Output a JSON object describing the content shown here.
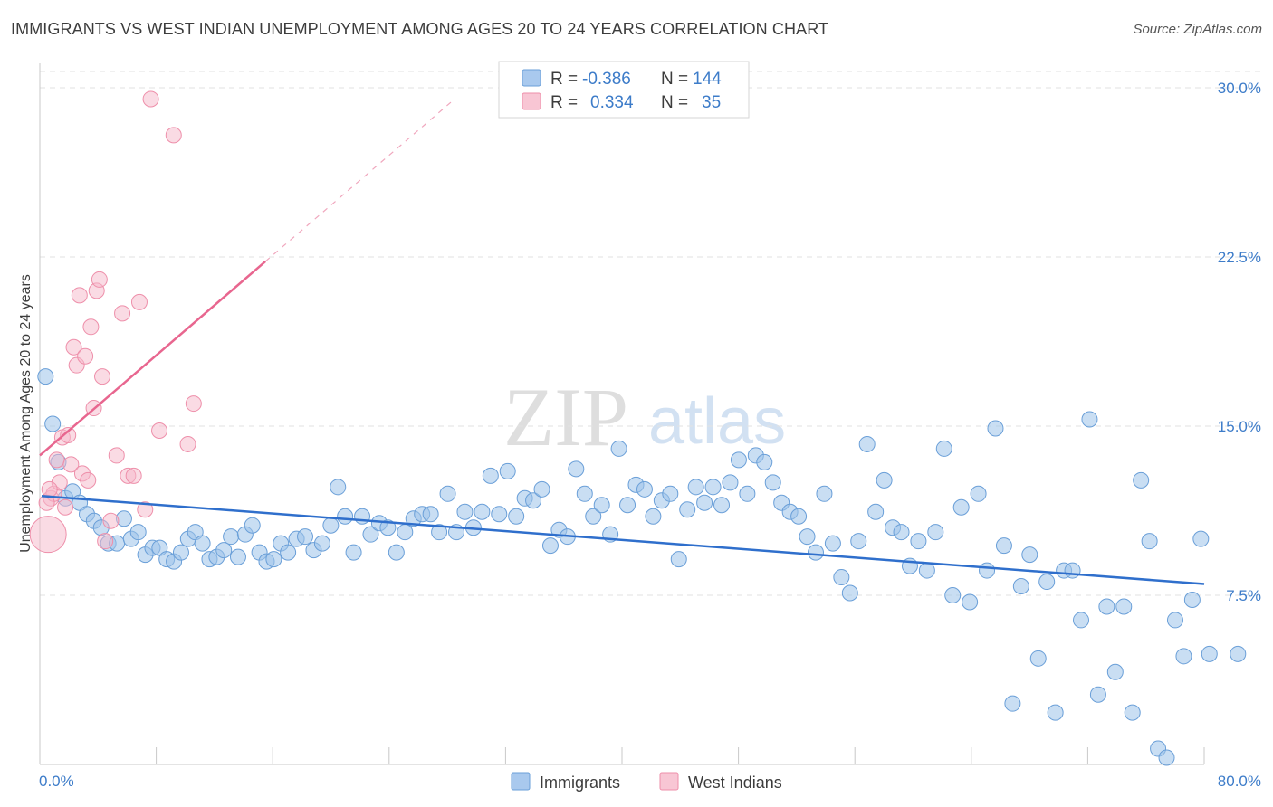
{
  "title": "IMMIGRANTS VS WEST INDIAN UNEMPLOYMENT AMONG AGES 20 TO 24 YEARS CORRELATION CHART",
  "source": "Source: ZipAtlas.com",
  "watermark": {
    "zip": "ZIP",
    "atlas": "atlas"
  },
  "legend": {
    "rows": [
      {
        "r_label": "R =",
        "r_value": "-0.386",
        "n_label": "N =",
        "n_value": "144",
        "color": "#9dc3ea"
      },
      {
        "r_label": "R =",
        "r_value": "0.334",
        "n_label": "N =",
        "n_value": "35",
        "color": "#f5b8c9"
      }
    ]
  },
  "bottom_legend": [
    "Immigrants",
    "West Indians"
  ],
  "chart_data": {
    "type": "scatter",
    "title": "IMMIGRANTS VS WEST INDIAN UNEMPLOYMENT AMONG AGES 20 TO 24 YEARS CORRELATION CHART",
    "xlabel": "",
    "ylabel": "Unemployment Among Ages 20 to 24 years",
    "xlim": [
      0,
      80
    ],
    "ylim": [
      0,
      30
    ],
    "x_tick_labels": [
      "0.0%",
      "80.0%"
    ],
    "y_tick_labels": [
      "7.5%",
      "15.0%",
      "22.5%",
      "30.0%"
    ],
    "y_ticks": [
      7.5,
      15.0,
      22.5,
      30.0
    ],
    "grid": "horizontal dashed",
    "legend_position": "top-center",
    "colors": {
      "immigrants": "#9dc3ea",
      "immigrants_edge": "#6a9fd8",
      "immigrants_line": "#2f6fcc",
      "west_indians": "#f5b8c9",
      "west_indians_edge": "#ee8faa",
      "west_indians_line": "#e8668f"
    },
    "series": [
      {
        "name": "Immigrants",
        "trend": {
          "x": [
            0,
            80
          ],
          "y": [
            11.9,
            8.0
          ]
        },
        "points": [
          [
            0.4,
            17.2
          ],
          [
            0.9,
            15.1
          ],
          [
            1.3,
            13.4
          ],
          [
            1.8,
            11.8
          ],
          [
            2.3,
            12.1
          ],
          [
            2.8,
            11.6
          ],
          [
            3.3,
            11.1
          ],
          [
            3.8,
            10.8
          ],
          [
            4.3,
            10.5
          ],
          [
            4.8,
            9.8
          ],
          [
            5.4,
            9.8
          ],
          [
            5.9,
            10.9
          ],
          [
            6.4,
            10.0
          ],
          [
            6.9,
            10.3
          ],
          [
            7.4,
            9.3
          ],
          [
            7.9,
            9.6
          ],
          [
            8.4,
            9.6
          ],
          [
            8.9,
            9.1
          ],
          [
            9.4,
            9.0
          ],
          [
            9.9,
            9.4
          ],
          [
            10.4,
            10.0
          ],
          [
            10.9,
            10.3
          ],
          [
            11.4,
            9.8
          ],
          [
            11.9,
            9.1
          ],
          [
            12.4,
            9.2
          ],
          [
            12.9,
            9.5
          ],
          [
            13.4,
            10.1
          ],
          [
            13.9,
            9.2
          ],
          [
            14.4,
            10.2
          ],
          [
            14.9,
            10.6
          ],
          [
            15.4,
            9.4
          ],
          [
            15.9,
            9.0
          ],
          [
            16.4,
            9.1
          ],
          [
            16.9,
            9.8
          ],
          [
            17.4,
            9.4
          ],
          [
            18.0,
            10.0
          ],
          [
            18.6,
            10.1
          ],
          [
            19.2,
            9.5
          ],
          [
            19.8,
            9.8
          ],
          [
            20.4,
            10.6
          ],
          [
            20.9,
            12.3
          ],
          [
            21.4,
            11.0
          ],
          [
            22.0,
            9.4
          ],
          [
            22.6,
            11.0
          ],
          [
            23.2,
            10.2
          ],
          [
            23.8,
            10.7
          ],
          [
            24.4,
            10.5
          ],
          [
            25.0,
            9.4
          ],
          [
            25.6,
            10.3
          ],
          [
            26.2,
            10.9
          ],
          [
            26.8,
            11.1
          ],
          [
            27.4,
            11.1
          ],
          [
            28.0,
            10.3
          ],
          [
            28.6,
            12.0
          ],
          [
            29.2,
            10.3
          ],
          [
            29.8,
            11.2
          ],
          [
            30.4,
            10.5
          ],
          [
            31.0,
            11.2
          ],
          [
            31.6,
            12.8
          ],
          [
            32.2,
            11.1
          ],
          [
            32.8,
            13.0
          ],
          [
            33.4,
            11.0
          ],
          [
            34.0,
            11.8
          ],
          [
            34.6,
            11.7
          ],
          [
            35.2,
            12.2
          ],
          [
            35.8,
            9.7
          ],
          [
            36.4,
            10.4
          ],
          [
            37.0,
            10.1
          ],
          [
            37.6,
            13.1
          ],
          [
            38.2,
            12.0
          ],
          [
            38.8,
            11.0
          ],
          [
            39.4,
            11.5
          ],
          [
            40.0,
            10.2
          ],
          [
            40.6,
            14.0
          ],
          [
            41.2,
            11.5
          ],
          [
            41.8,
            12.4
          ],
          [
            42.4,
            12.2
          ],
          [
            43.0,
            11.0
          ],
          [
            43.6,
            11.7
          ],
          [
            44.2,
            12.0
          ],
          [
            44.8,
            9.1
          ],
          [
            45.4,
            11.3
          ],
          [
            46.0,
            12.3
          ],
          [
            46.6,
            11.6
          ],
          [
            47.2,
            12.3
          ],
          [
            47.8,
            11.5
          ],
          [
            48.4,
            12.5
          ],
          [
            49.0,
            13.5
          ],
          [
            49.6,
            12.0
          ],
          [
            50.2,
            13.7
          ],
          [
            50.8,
            13.4
          ],
          [
            51.4,
            12.5
          ],
          [
            52.0,
            11.6
          ],
          [
            52.6,
            11.2
          ],
          [
            53.2,
            11.0
          ],
          [
            53.8,
            10.1
          ],
          [
            54.4,
            9.4
          ],
          [
            55.0,
            12.0
          ],
          [
            55.6,
            9.8
          ],
          [
            56.2,
            8.3
          ],
          [
            56.8,
            7.6
          ],
          [
            57.4,
            9.9
          ],
          [
            58.0,
            14.2
          ],
          [
            58.6,
            11.2
          ],
          [
            59.2,
            12.6
          ],
          [
            59.8,
            10.5
          ],
          [
            60.4,
            10.3
          ],
          [
            61.0,
            8.8
          ],
          [
            61.6,
            9.9
          ],
          [
            62.2,
            8.6
          ],
          [
            62.8,
            10.3
          ],
          [
            63.4,
            14.0
          ],
          [
            64.0,
            7.5
          ],
          [
            64.6,
            11.4
          ],
          [
            65.2,
            7.2
          ],
          [
            65.8,
            12.0
          ],
          [
            66.4,
            8.6
          ],
          [
            67.0,
            14.9
          ],
          [
            67.6,
            9.7
          ],
          [
            68.2,
            2.7
          ],
          [
            68.8,
            7.9
          ],
          [
            69.4,
            9.3
          ],
          [
            70.0,
            4.7
          ],
          [
            70.6,
            8.1
          ],
          [
            71.2,
            2.3
          ],
          [
            71.8,
            8.6
          ],
          [
            72.4,
            8.6
          ],
          [
            73.0,
            6.4
          ],
          [
            73.6,
            15.3
          ],
          [
            74.2,
            3.1
          ],
          [
            74.8,
            7.0
          ],
          [
            75.4,
            4.1
          ],
          [
            76.0,
            7.0
          ],
          [
            76.6,
            2.3
          ],
          [
            77.2,
            12.6
          ],
          [
            77.8,
            9.9
          ],
          [
            78.4,
            0.7
          ],
          [
            79.0,
            0.3
          ],
          [
            79.6,
            6.4
          ],
          [
            80.2,
            4.8
          ],
          [
            80.8,
            7.3
          ],
          [
            81.4,
            10.0
          ],
          [
            82.0,
            4.9
          ],
          [
            84.0,
            4.9
          ]
        ]
      },
      {
        "name": "West Indians",
        "trend": {
          "x": [
            0,
            15.5
          ],
          "y": [
            13.7,
            22.3
          ],
          "extension": {
            "x": [
              15.5,
              28.5
            ],
            "y": [
              22.3,
              29.5
            ]
          }
        },
        "points": [
          [
            0.2,
            10.2
          ],
          [
            0.4,
            11.8
          ],
          [
            0.6,
            12.0
          ],
          [
            0.8,
            13.5
          ],
          [
            1.0,
            12.5
          ],
          [
            1.2,
            14.5
          ],
          [
            1.4,
            11.4
          ],
          [
            1.6,
            14.6
          ],
          [
            1.8,
            13.3
          ],
          [
            2.0,
            18.5
          ],
          [
            2.2,
            17.7
          ],
          [
            2.4,
            20.8
          ],
          [
            2.6,
            12.9
          ],
          [
            2.8,
            18.1
          ],
          [
            3.0,
            12.6
          ],
          [
            3.2,
            19.4
          ],
          [
            3.4,
            15.8
          ],
          [
            3.6,
            21.0
          ],
          [
            3.8,
            21.5
          ],
          [
            4.0,
            17.2
          ],
          [
            4.2,
            9.9
          ],
          [
            4.6,
            10.8
          ],
          [
            5.0,
            13.7
          ],
          [
            5.4,
            20.0
          ],
          [
            5.8,
            12.8
          ],
          [
            6.2,
            12.8
          ],
          [
            6.6,
            20.5
          ],
          [
            7.0,
            11.3
          ],
          [
            7.4,
            29.5
          ],
          [
            8.0,
            14.8
          ],
          [
            9.0,
            27.9
          ],
          [
            10.0,
            14.2
          ],
          [
            10.4,
            16.0
          ],
          [
            0.1,
            11.6
          ],
          [
            0.3,
            12.2
          ]
        ]
      }
    ]
  }
}
